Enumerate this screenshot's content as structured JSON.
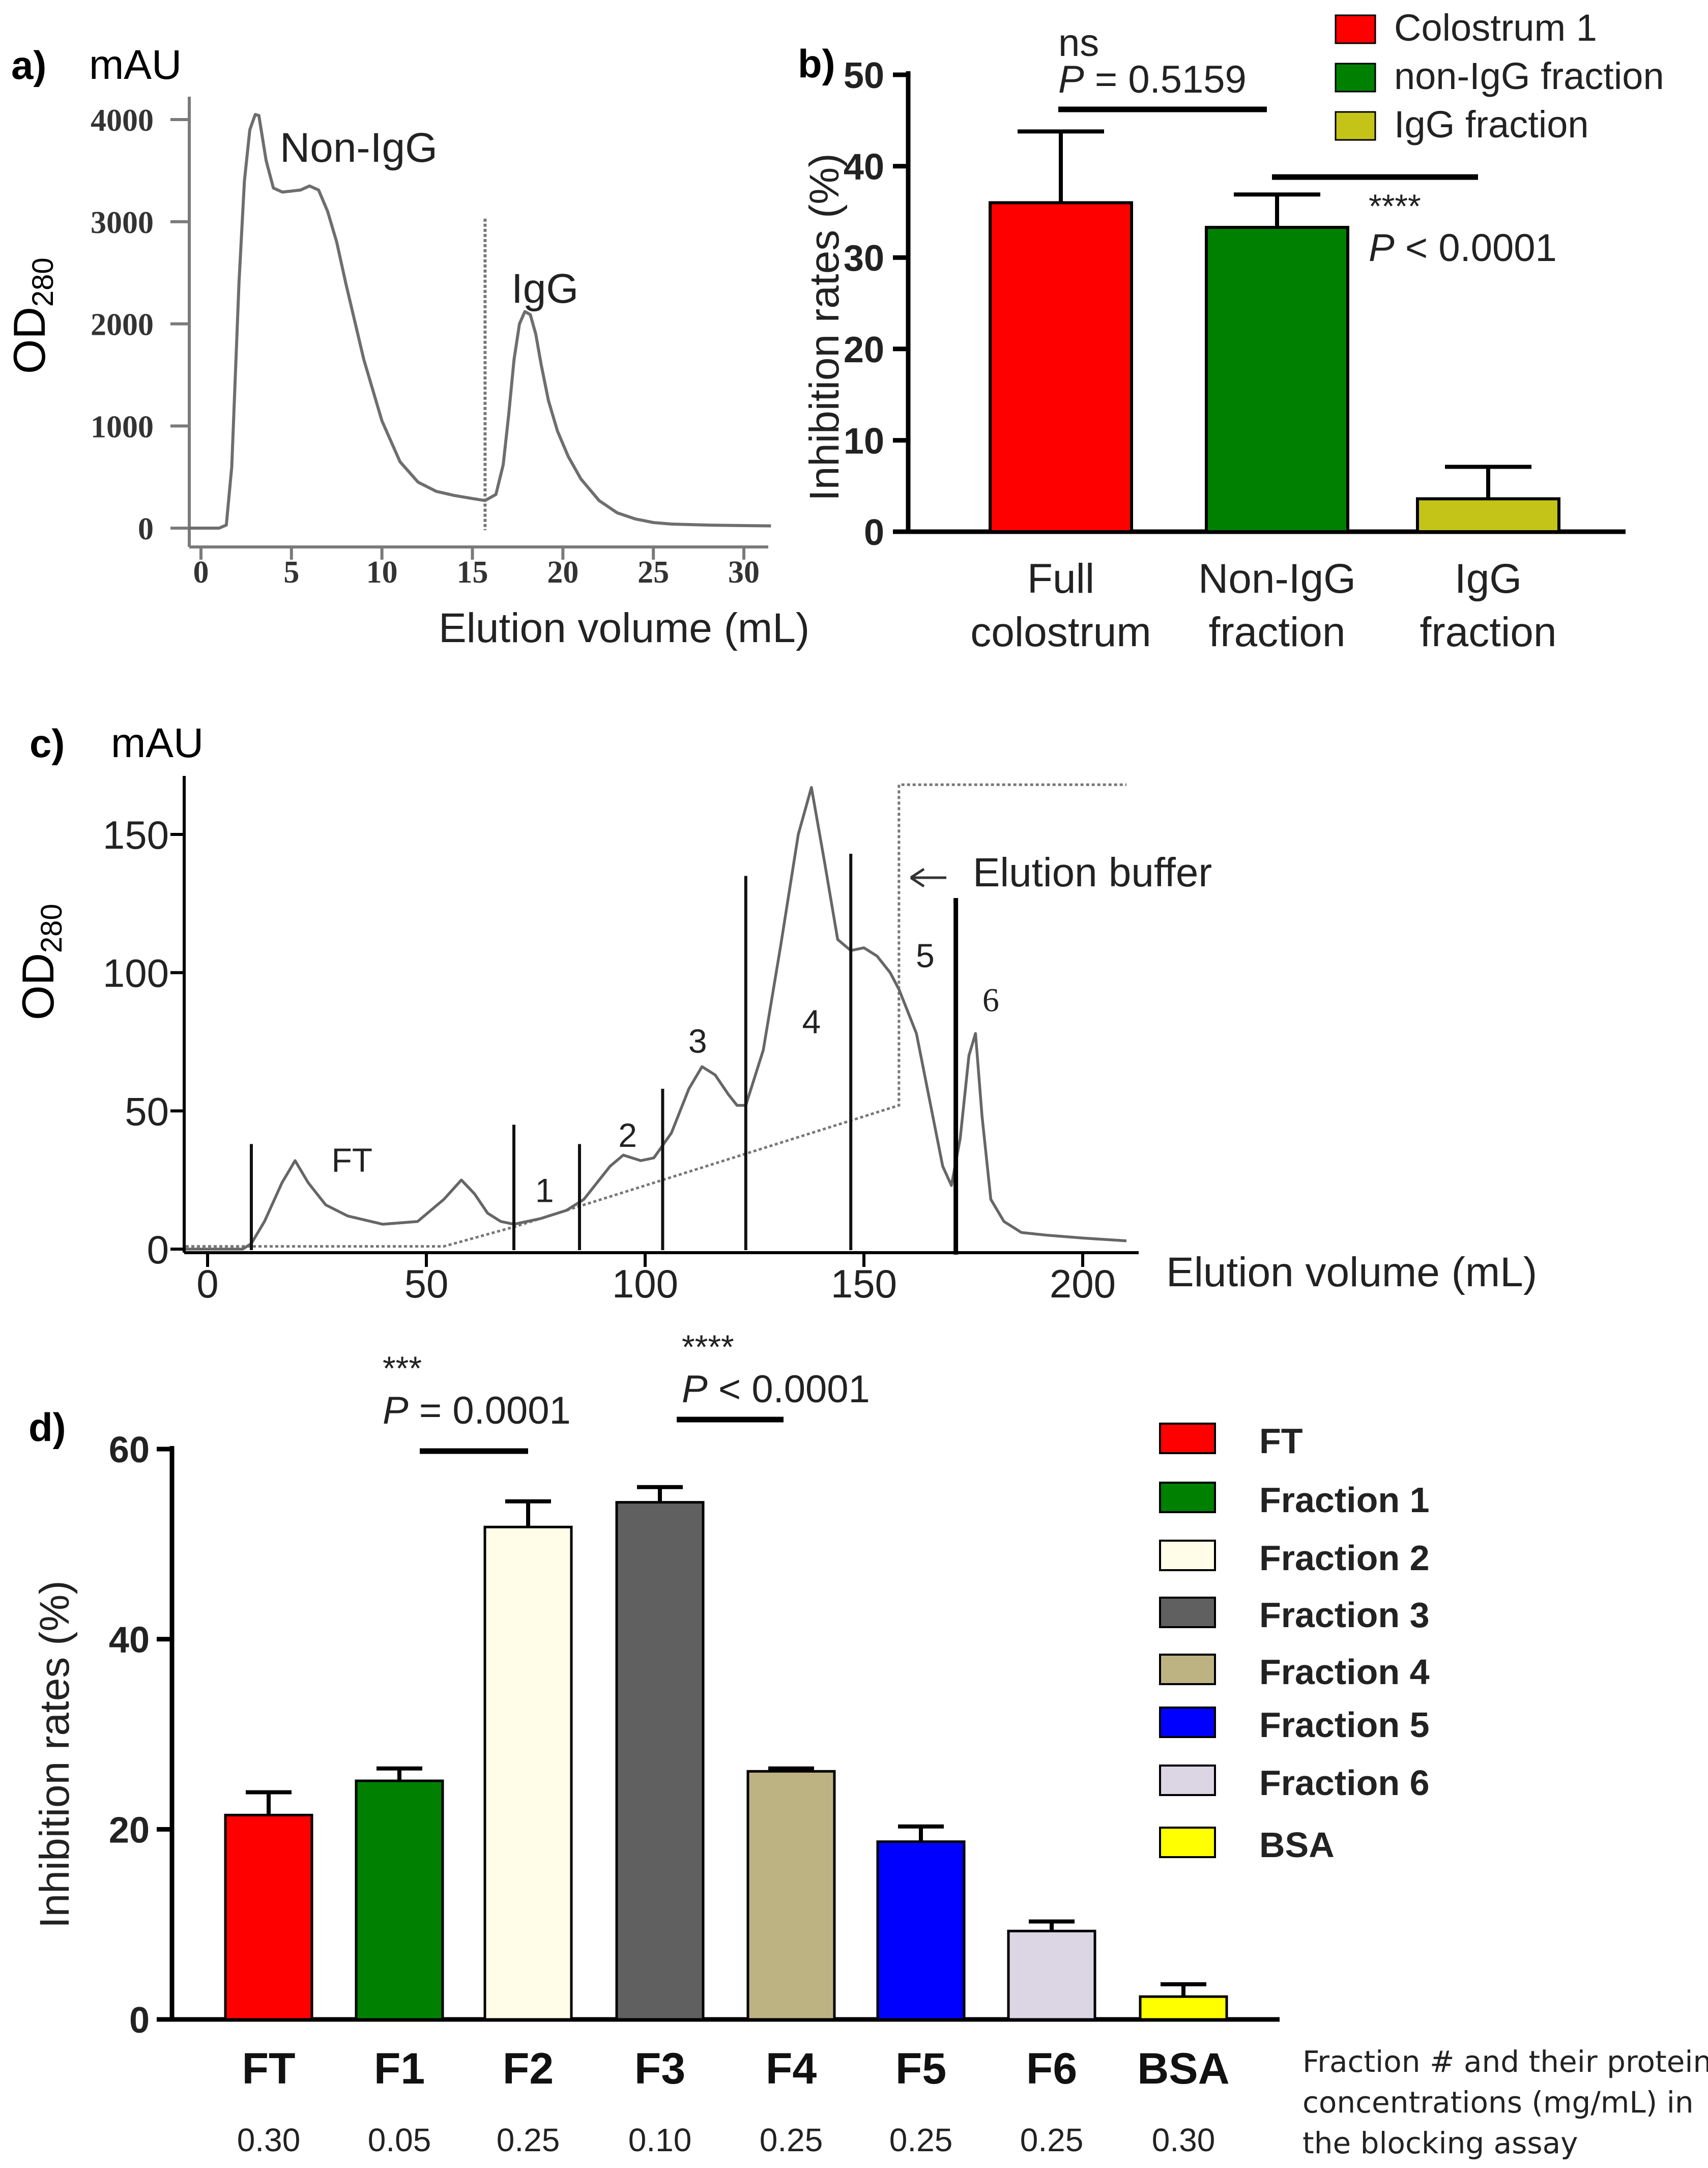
{
  "chart_data": [
    {
      "panel": "a)",
      "type": "line",
      "unit": "mAU",
      "ylabel": "OD",
      "ylabel_sub": "280",
      "xlabel": "Elution volume (mL)",
      "xlim": [
        -0.5,
        31.5
      ],
      "ylim": [
        -60,
        4300
      ],
      "xticks": [
        0,
        5,
        10,
        15,
        20,
        25,
        30
      ],
      "yticks": [
        0,
        1000,
        2000,
        3000,
        4000
      ],
      "annotations": [
        "Non-IgG",
        "IgG"
      ],
      "divider_x": 15.7,
      "x": [
        -0.7,
        1.0,
        1.4,
        1.7,
        2.1,
        2.4,
        2.7,
        3.0,
        3.2,
        3.6,
        4.0,
        4.5,
        5.0,
        5.5,
        6.0,
        6.5,
        7.0,
        7.5,
        8.0,
        9.0,
        10.0,
        11.0,
        12.0,
        13.0,
        14.0,
        15.0,
        15.7,
        16.3,
        16.7,
        17.0,
        17.3,
        17.6,
        17.9,
        18.2,
        18.5,
        18.8,
        19.2,
        19.7,
        20.3,
        21.0,
        22.0,
        23.0,
        24.0,
        25.0,
        26.0,
        28.0,
        30.0,
        31.5
      ],
      "y": [
        0,
        0,
        30,
        600,
        2400,
        3400,
        3900,
        4050,
        4040,
        3600,
        3330,
        3290,
        3300,
        3310,
        3350,
        3310,
        3100,
        2800,
        2400,
        1650,
        1050,
        650,
        450,
        360,
        320,
        290,
        270,
        330,
        620,
        1100,
        1650,
        2000,
        2120,
        2090,
        1900,
        1600,
        1250,
        950,
        700,
        480,
        270,
        150,
        90,
        55,
        40,
        30,
        25,
        22
      ]
    },
    {
      "panel": "b)",
      "type": "bar",
      "ylabel": "Inhibition rates (%)",
      "ylim": [
        0,
        50
      ],
      "yticks": [
        0,
        10,
        20,
        30,
        40,
        50
      ],
      "categories": [
        [
          "Full",
          "colostrum"
        ],
        [
          "Non-IgG",
          "fraction"
        ],
        [
          "IgG",
          "fraction"
        ]
      ],
      "values": [
        36,
        33.3,
        3.6
      ],
      "errors": [
        7.8,
        3.6,
        3.5
      ],
      "colors": [
        "#ff0000",
        "#008000",
        "#c4c418"
      ],
      "legend": [
        "Colostrum 1",
        "non-IgG fraction",
        "IgG fraction"
      ],
      "comparisons": [
        {
          "stars": "ns",
          "p_label": "P",
          "p_text": " = 0.5159"
        },
        {
          "stars": "****",
          "p_label": "P",
          "p_text": " < 0.0001"
        }
      ]
    },
    {
      "panel": "c)",
      "type": "line",
      "unit": "mAU",
      "ylabel": "OD",
      "ylabel_sub": "280",
      "xlabel": "Elution volume (mL)",
      "xlim": [
        -5,
        213
      ],
      "ylim": [
        -4,
        170
      ],
      "xticks": [
        0,
        50,
        100,
        150,
        200
      ],
      "yticks": [
        0,
        50,
        100,
        150
      ],
      "x": [
        -5,
        8,
        10,
        13,
        17,
        20,
        23,
        27,
        32,
        40,
        48,
        54,
        58,
        61,
        64,
        67,
        70,
        76,
        82,
        86,
        89,
        92,
        95,
        99,
        102,
        106,
        110,
        113,
        116,
        119,
        121,
        123,
        127,
        131,
        135,
        138,
        141,
        144,
        147,
        150,
        153,
        156,
        158,
        160,
        162,
        164,
        166,
        168,
        170,
        172,
        174,
        175.5,
        177,
        179,
        182,
        186,
        192,
        200,
        210
      ],
      "y": [
        0,
        0,
        2,
        10,
        24,
        32,
        24,
        16,
        12,
        9,
        10,
        18,
        25,
        20,
        13,
        10,
        9,
        11,
        14,
        18,
        24,
        30,
        34,
        32,
        33,
        42,
        58,
        66,
        63,
        56,
        52,
        52,
        72,
        110,
        150,
        167,
        140,
        112,
        108,
        109,
        106,
        100,
        94,
        86,
        78,
        62,
        46,
        30,
        23,
        40,
        70,
        78,
        48,
        18,
        10,
        6,
        5,
        4,
        3
      ],
      "gradient_x": [
        -5,
        54,
        70,
        158,
        158,
        210
      ],
      "gradient_y": [
        1,
        1,
        8,
        52,
        168,
        168
      ],
      "markers": [
        10,
        70,
        85,
        104,
        123,
        147
      ],
      "marker_heights": [
        38,
        45,
        38,
        58,
        135,
        143
      ],
      "fraction_cut_x": 171,
      "fraction_cut_height": 127,
      "region_labels": [
        "FT",
        "1",
        "2",
        "3",
        "4",
        "5",
        "6"
      ],
      "annotation": "Elution buffer"
    },
    {
      "panel": "d)",
      "type": "bar",
      "ylabel": "Inhibition rates (%)",
      "ylim": [
        0,
        60
      ],
      "yticks": [
        0,
        20,
        40,
        60
      ],
      "categories": [
        "FT",
        "F1",
        "F2",
        "F3",
        "F4",
        "F5",
        "F6",
        "BSA"
      ],
      "values": [
        21.5,
        25.1,
        51.8,
        54.4,
        26.1,
        18.7,
        9.3,
        2.4
      ],
      "errors": [
        2.4,
        1.3,
        2.7,
        1.6,
        0.3,
        1.6,
        1.0,
        1.3
      ],
      "colors": [
        "#ff0000",
        "#008000",
        "#fffde7",
        "#606060",
        "#bdb282",
        "#0000ff",
        "#dcd5e3",
        "#ffff00"
      ],
      "concentrations": [
        "0.30",
        "0.05",
        "0.25",
        "0.10",
        "0.25",
        "0.25",
        "0.25",
        "0.30"
      ],
      "legend": [
        "FT",
        "Fraction 1",
        "Fraction 2",
        "Fraction 3",
        "Fraction 4",
        "Fraction 5",
        "Fraction 6",
        "BSA"
      ],
      "comparisons": [
        {
          "stars": "***",
          "p_label": "P",
          "p_text": " = 0.0001"
        },
        {
          "stars": "****",
          "p_label": "P",
          "p_text": " < 0.0001"
        }
      ],
      "note_lines": [
        "Fraction # and their protein",
        "concentrations (mg/mL) in",
        "the blocking assay"
      ]
    }
  ]
}
